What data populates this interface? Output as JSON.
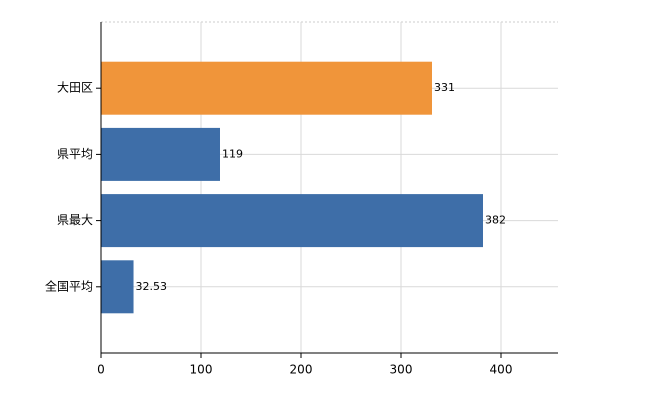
{
  "chart_data": {
    "type": "barh",
    "categories": [
      "大田区",
      "県平均",
      "県最大",
      "全国平均"
    ],
    "values": [
      331,
      119,
      382,
      32.53
    ],
    "colors": [
      "#f0953a",
      "#3e6ea8",
      "#3e6ea8",
      "#3e6ea8"
    ],
    "xlim": [
      0,
      457
    ],
    "xticks": [
      0,
      100,
      200,
      300,
      400
    ],
    "grid": true
  }
}
